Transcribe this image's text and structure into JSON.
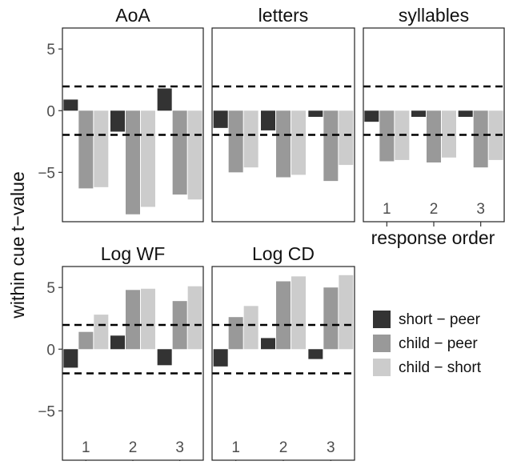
{
  "chart_data": {
    "type": "bar",
    "ylabel": "within cue t−value",
    "xlabel": "response order",
    "categories": [
      "1",
      "2",
      "3"
    ],
    "yticks": [
      "5",
      "0",
      "−5"
    ],
    "ylim": [
      -9,
      6.7
    ],
    "reference_lines": [
      -1.96,
      1.96
    ],
    "grid": false,
    "legend_position": "right",
    "legend": [
      {
        "label": "short − peer",
        "color": "#333333"
      },
      {
        "label": "child − peer",
        "color": "#999999"
      },
      {
        "label": "child − short",
        "color": "#cccccc"
      }
    ],
    "panels": [
      {
        "title": "AoA",
        "series": [
          {
            "name": "short − peer",
            "values": [
              0.9,
              -1.7,
              1.8
            ]
          },
          {
            "name": "child − peer",
            "values": [
              -6.3,
              -8.4,
              -6.8
            ]
          },
          {
            "name": "child − short",
            "values": [
              -6.2,
              -7.8,
              -7.2
            ]
          }
        ]
      },
      {
        "title": "letters",
        "series": [
          {
            "name": "short − peer",
            "values": [
              -1.4,
              -1.6,
              -0.5
            ]
          },
          {
            "name": "child − peer",
            "values": [
              -5.0,
              -5.4,
              -5.7
            ]
          },
          {
            "name": "child − short",
            "values": [
              -4.6,
              -5.2,
              -4.4
            ]
          }
        ]
      },
      {
        "title": "syllables",
        "series": [
          {
            "name": "short − peer",
            "values": [
              -0.9,
              -0.5,
              -0.5
            ]
          },
          {
            "name": "child − peer",
            "values": [
              -4.1,
              -4.2,
              -4.6
            ]
          },
          {
            "name": "child − short",
            "values": [
              -4.0,
              -3.8,
              -4.0
            ]
          }
        ]
      },
      {
        "title": "Log WF",
        "series": [
          {
            "name": "short − peer",
            "values": [
              -1.5,
              1.1,
              -1.3
            ]
          },
          {
            "name": "child − peer",
            "values": [
              1.4,
              4.8,
              3.9
            ]
          },
          {
            "name": "child − short",
            "values": [
              2.8,
              4.9,
              5.1
            ]
          }
        ]
      },
      {
        "title": "Log CD",
        "series": [
          {
            "name": "short − peer",
            "values": [
              -1.4,
              0.9,
              -0.8
            ]
          },
          {
            "name": "child − peer",
            "values": [
              2.6,
              5.5,
              5.0
            ]
          },
          {
            "name": "child − short",
            "values": [
              3.5,
              5.9,
              6.0
            ]
          }
        ]
      }
    ]
  }
}
